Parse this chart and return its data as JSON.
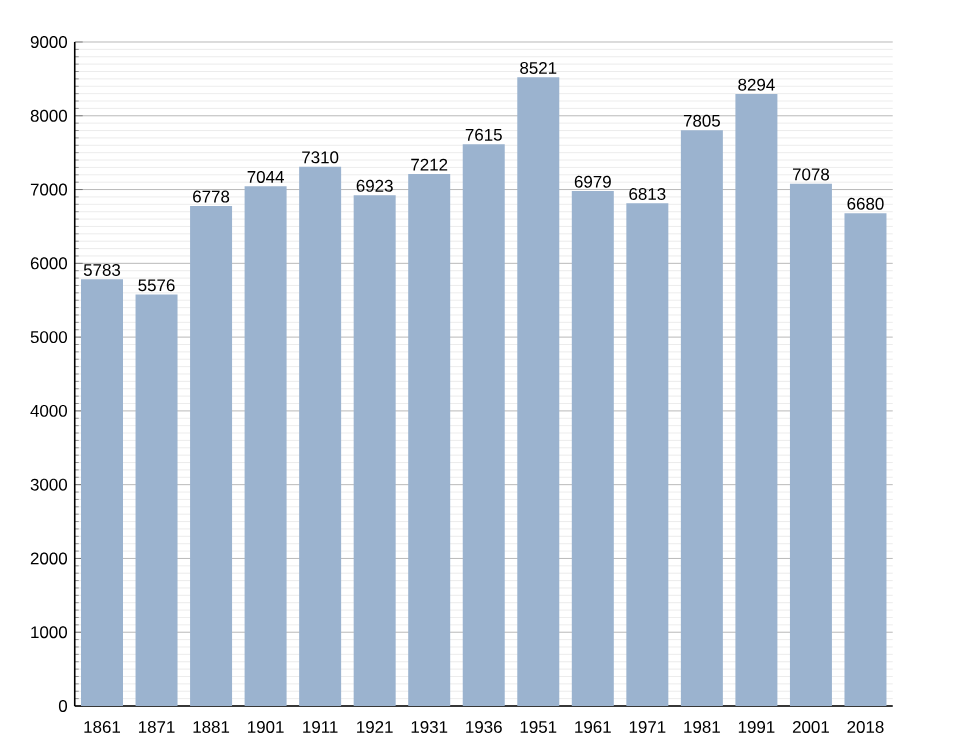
{
  "chart_data": {
    "type": "bar",
    "categories": [
      "1861",
      "1871",
      "1881",
      "1901",
      "1911",
      "1921",
      "1931",
      "1936",
      "1951",
      "1961",
      "1971",
      "1981",
      "1991",
      "2001",
      "2018"
    ],
    "values": [
      5783,
      5576,
      6778,
      7044,
      7310,
      6923,
      7212,
      7615,
      8521,
      6979,
      6813,
      7805,
      8294,
      7078,
      6680
    ],
    "color": "#9bb3cf",
    "ylim": [
      0,
      9000
    ],
    "yticks": [
      0,
      1000,
      2000,
      3000,
      4000,
      5000,
      6000,
      7000,
      8000,
      9000
    ],
    "grid": "y",
    "data_labels": true
  }
}
